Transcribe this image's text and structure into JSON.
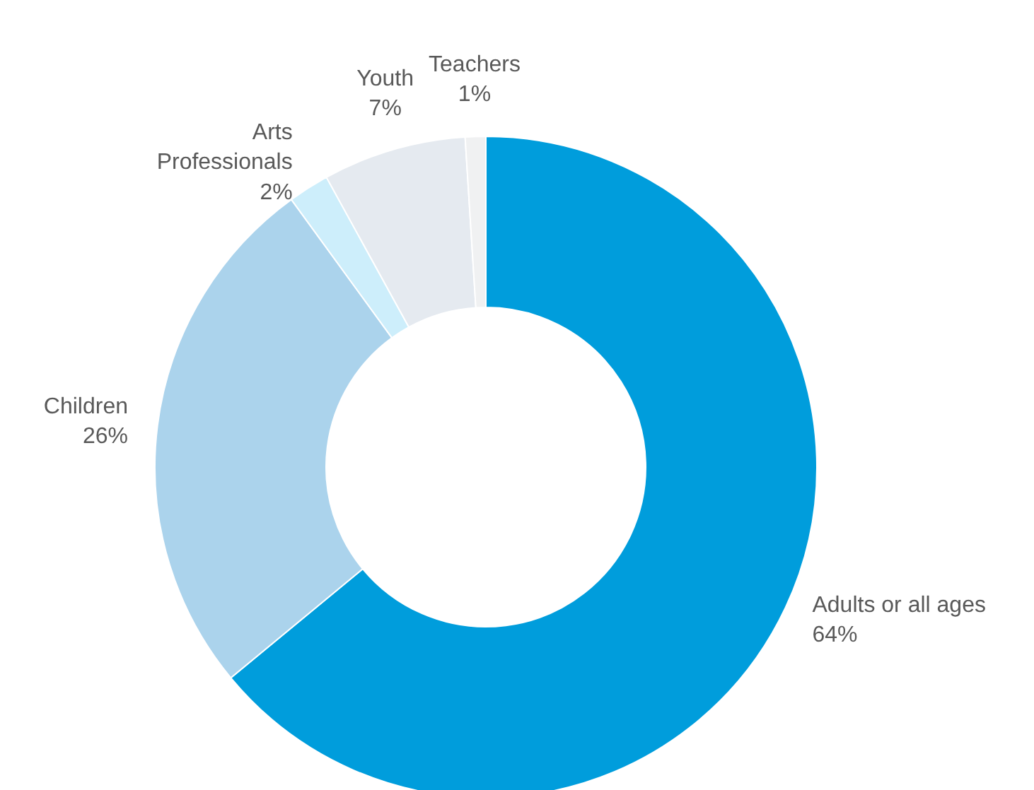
{
  "chart_data": {
    "type": "donut",
    "categories": [
      "Adults or all ages",
      "Children",
      "Arts Professionals",
      "Youth",
      "Teachers"
    ],
    "values": [
      64,
      26,
      2,
      7,
      1
    ],
    "value_labels": [
      "64%",
      "26%",
      "2%",
      "7%",
      "1%"
    ],
    "colors": [
      "#009ddc",
      "#abd3ec",
      "#cdeefb",
      "#e5eaf0",
      "#f0f1f2"
    ]
  }
}
